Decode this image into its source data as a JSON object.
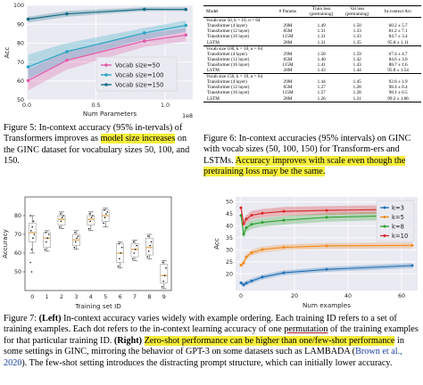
{
  "figure5": {
    "caption_parts": {
      "label": "Figure 5:",
      "a": " In-context accuracy (95% in-tervals) of Transformers improves as ",
      "highlight": "model size increases",
      "b": " on the GINC dataset for vocabulary sizes 50, 100, and 150."
    },
    "chart_data": {
      "type": "line",
      "xlabel": "Num Parameters",
      "ylabel": "Acc",
      "x_multiplier": "1e8",
      "xlim": [
        0,
        1.2
      ],
      "ylim": [
        50,
        100
      ],
      "x_ticks": [
        "0.0",
        "0.5",
        "1.0"
      ],
      "y_ticks": [
        "50",
        "60",
        "70",
        "80",
        "90",
        "100"
      ],
      "x": [
        0.01,
        0.29,
        0.85,
        1.15
      ],
      "series": [
        {
          "name": "Vocab size=50",
          "color": "#e05aa8",
          "values": [
            60.2,
            70.9,
            81.1,
            84.3
          ],
          "band": [
            [
              55,
              66
            ],
            [
              66,
              76
            ],
            [
              78,
              85
            ],
            [
              81,
              88
            ]
          ]
        },
        {
          "name": "Vocab size=100",
          "color": "#2ba6c2",
          "values": [
            67.4,
            75.5,
            85.4,
            89.4
          ],
          "band": [
            [
              61,
              74
            ],
            [
              71,
              80
            ],
            [
              82,
              88
            ],
            [
              86,
              92
            ]
          ]
        },
        {
          "name": "Vocab size=150",
          "color": "#1a6e86",
          "values": [
            92.7,
            95.5,
            97.9,
            97.8
          ],
          "band": [
            [
              91,
              94
            ],
            [
              94,
              97
            ],
            [
              97,
              99
            ],
            [
              97,
              99
            ]
          ]
        }
      ],
      "legend": "lower-right",
      "grid": true
    }
  },
  "table": {
    "headers": [
      "Model",
      "# Params",
      "Train loss (pretraining)",
      "Val loss (pretraining)",
      "In-context Acc"
    ],
    "groups": [
      {
        "title": "Vocab size 50, k = 10, n = 64",
        "rows": [
          [
            "Transformer (4 layer)",
            "29M",
            "1.49",
            "1.50",
            "60.2 ± 5.7"
          ],
          [
            "Transformer (12 layer)",
            "85M",
            "1.31",
            "1.33",
            "81.2 ± 7.1"
          ],
          [
            "Transformer (16 layer)",
            "115M",
            "1.31",
            "1.33",
            "84.7 ± 3.4"
          ],
          [
            "LSTM",
            "28M",
            "1.31",
            "1.35",
            "95.8 ± 1.11"
          ]
        ]
      },
      {
        "title": "Vocab size 100, k = 10, n = 64",
        "rows": [
          [
            "Transformer (4 layer)",
            "29M",
            "1.58",
            "1.59",
            "67.4 ± 4.7"
          ],
          [
            "Transformer (12 layer)",
            "85M",
            "1.40",
            "1.42",
            "84.6 ± 3.0"
          ],
          [
            "Transformer (16 layer)",
            "115M",
            "1.41",
            "1.43",
            "88.7 ± 1.6"
          ],
          [
            "LSTM",
            "28M",
            "1.43",
            "1.44",
            "95.8 ± 1.54"
          ]
        ]
      },
      {
        "title": "Vocab size 150, k = 10, n = 64",
        "rows": [
          [
            "Transformer (4 layer)",
            "29M",
            "1.44",
            "1.45",
            "92.8 ± 1.9"
          ],
          [
            "Transformer (12 layer)",
            "85M",
            "1.27",
            "1.28",
            "98.4 ± 0.4"
          ],
          [
            "Transformer (16 layer)",
            "115M",
            "1.27",
            "1.28",
            "98.1 ± 0.5"
          ],
          [
            "LSTM",
            "28M",
            "1.26",
            "1.31",
            "99.2 ± 1.06"
          ]
        ]
      }
    ]
  },
  "figure6": {
    "caption_parts": {
      "label": "Figure 6:",
      "a": " In-context accuracies (95% intervals) on GINC with vocab sizes (50, 100, 150) for Transform-ers and LSTMs. ",
      "highlight": "Accuracy improves with scale even though the pretraining loss may be the same."
    }
  },
  "boxplot": {
    "chart_data": {
      "type": "box",
      "xlabel": "Training set ID",
      "ylabel": "Accuracy",
      "ylim": [
        40,
        90
      ],
      "y_ticks": [
        "50",
        "60",
        "70",
        "80"
      ],
      "categories": [
        "0",
        "1",
        "2",
        "3",
        "4",
        "5",
        "6",
        "7",
        "8",
        "9"
      ],
      "boxes": [
        {
          "q1": 66,
          "med": 71,
          "q3": 76,
          "lo": 60,
          "hi": 80,
          "pts": [
            55,
            62,
            68,
            70,
            72,
            74,
            77,
            80,
            50
          ]
        },
        {
          "q1": 63,
          "med": 68,
          "q3": 71,
          "lo": 61,
          "hi": 72,
          "pts": [
            62,
            66,
            68,
            70,
            71
          ]
        },
        {
          "q1": 75,
          "med": 78,
          "q3": 80,
          "lo": 73,
          "hi": 82,
          "pts": [
            74,
            77,
            79,
            80,
            81
          ]
        },
        {
          "q1": 64,
          "med": 67,
          "q3": 70,
          "lo": 62,
          "hi": 72,
          "pts": [
            63,
            66,
            68,
            69,
            71
          ]
        },
        {
          "q1": 75,
          "med": 78,
          "q3": 80,
          "lo": 72,
          "hi": 82,
          "pts": [
            73,
            77,
            79,
            80,
            81
          ]
        },
        {
          "q1": 77,
          "med": 80,
          "q3": 83,
          "lo": 74,
          "hi": 84,
          "pts": [
            76,
            79,
            81,
            82,
            83
          ]
        },
        {
          "q1": 55,
          "med": 60,
          "q3": 65,
          "lo": 52,
          "hi": 66,
          "pts": [
            53,
            57,
            60,
            63,
            65
          ]
        },
        {
          "q1": 58,
          "med": 62,
          "q3": 65,
          "lo": 56,
          "hi": 67,
          "pts": [
            57,
            60,
            62,
            64,
            66
          ]
        },
        {
          "q1": 59,
          "med": 63,
          "q3": 68,
          "lo": 57,
          "hi": 70,
          "pts": [
            58,
            61,
            64,
            66,
            69
          ]
        },
        {
          "q1": 44,
          "med": 48,
          "q3": 54,
          "lo": 41,
          "hi": 56,
          "pts": [
            42,
            45,
            48,
            52,
            55
          ]
        }
      ],
      "box_color": "#e3b777"
    }
  },
  "kshot": {
    "chart_data": {
      "type": "line",
      "xlabel": "Num examples",
      "ylabel": "Acc",
      "xlim": [
        -2,
        66
      ],
      "ylim": [
        13,
        52
      ],
      "x_ticks": [
        "0",
        "20",
        "40",
        "60"
      ],
      "y_ticks": [
        "20",
        "25",
        "30",
        "35",
        "40",
        "45",
        "50"
      ],
      "x": [
        0,
        1,
        2,
        4,
        8,
        16,
        32,
        64
      ],
      "series": [
        {
          "name": "k=3",
          "color": "#1f6fb4",
          "values": [
            16.2,
            15.4,
            16.1,
            17.0,
            18.6,
            20.4,
            21.8,
            23.4
          ],
          "band_w": 1.0
        },
        {
          "name": "k=5",
          "color": "#f08a1c",
          "values": [
            23.6,
            24.5,
            27.0,
            28.8,
            30.1,
            31.0,
            31.6,
            31.8
          ],
          "band_w": 1.2
        },
        {
          "name": "k=8",
          "color": "#2ca02c",
          "values": [
            44.3,
            36.5,
            39.2,
            40.6,
            41.4,
            42.3,
            43.5,
            44.4
          ],
          "band_w": 1.8
        },
        {
          "name": "k=10",
          "color": "#d62728",
          "values": [
            47.5,
            40.8,
            42.8,
            44.4,
            45.2,
            46.0,
            46.4,
            46.9
          ],
          "band_w": 1.8
        }
      ],
      "legend": "upper-right",
      "grid": true
    }
  },
  "figure7": {
    "caption_parts": {
      "label": "Figure 7:",
      "left_bold": "(Left)",
      "a": " In-context accuracy varies widely with example ordering. Each training ID refers to a set of training examples. Each dot refers to the in-context learning accuracy of one ",
      "ul1": "permutation",
      "b": " of the training examples for that particular training ID. ",
      "right_bold": "(Right)",
      "c": " ",
      "highlight": "Zero-shot performance can be higher than one/few-shot performance",
      "d": " in some settings in GINC, mirroring the behavior of GPT-3 on some datasets such as LAMBADA (",
      "cite": "Brown et al., 2020",
      "e": "). The few-shot setting introduces the distracting prompt structure, which can initially lower accuracy."
    }
  }
}
